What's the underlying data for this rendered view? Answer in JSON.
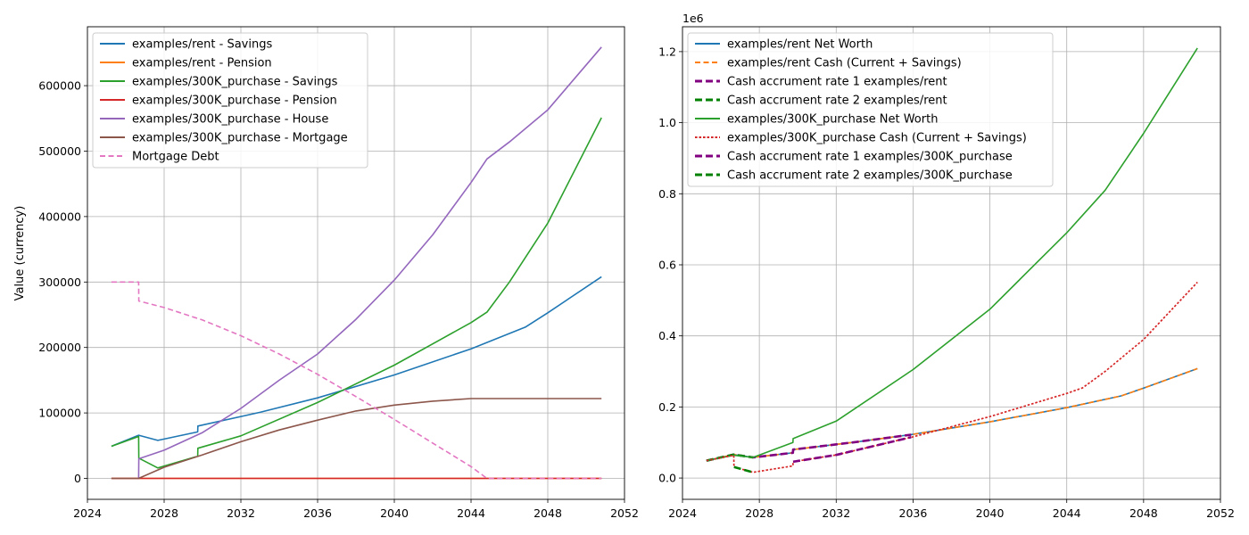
{
  "chart_data": [
    {
      "type": "line",
      "title": "",
      "xlabel": "",
      "ylabel": "Value (currency)",
      "xlim": [
        2024,
        2052
      ],
      "ylim": [
        -32000,
        690000
      ],
      "xticks": [
        2024,
        2028,
        2032,
        2036,
        2040,
        2044,
        2048,
        2052
      ],
      "yticks": [
        0,
        100000,
        200000,
        300000,
        400000,
        500000,
        600000
      ],
      "grid": true,
      "legend_position": "upper left",
      "series": [
        {
          "name": "examples/rent - Savings",
          "color": "#1f77b4",
          "style": "solid",
          "points": [
            [
              2025.25,
              49000
            ],
            [
              2026.67,
              66000
            ],
            [
              2027.67,
              58000
            ],
            [
              2029.75,
              71000
            ],
            [
              2029.76,
              80000
            ],
            [
              2033,
              101000
            ],
            [
              2036,
              123000
            ],
            [
              2040,
              158000
            ],
            [
              2044,
              198000
            ],
            [
              2046.83,
              231000
            ],
            [
              2048,
              253000
            ],
            [
              2050.8,
              308000
            ]
          ]
        },
        {
          "name": "examples/rent - Pension",
          "color": "#ff7f0e",
          "style": "solid",
          "points": [
            [
              2025.25,
              0
            ],
            [
              2050.8,
              0
            ]
          ]
        },
        {
          "name": "examples/300K_purchase - Savings",
          "color": "#2ca02c",
          "style": "solid",
          "points": [
            [
              2025.25,
              49000
            ],
            [
              2026.67,
              64000
            ],
            [
              2026.68,
              31000
            ],
            [
              2027.67,
              16000
            ],
            [
              2029.75,
              34000
            ],
            [
              2029.76,
              46000
            ],
            [
              2032,
              65000
            ],
            [
              2036,
              116000
            ],
            [
              2040,
              173000
            ],
            [
              2044,
              238000
            ],
            [
              2044.83,
              254000
            ],
            [
              2046,
              300000
            ],
            [
              2048,
              390000
            ],
            [
              2050.8,
              551000
            ]
          ]
        },
        {
          "name": "examples/300K_purchase - Pension",
          "color": "#d62728",
          "style": "solid",
          "points": [
            [
              2025.25,
              0
            ],
            [
              2050.8,
              0
            ]
          ]
        },
        {
          "name": "examples/300K_purchase - House",
          "color": "#9467bd",
          "style": "solid",
          "points": [
            [
              2026.67,
              0
            ],
            [
              2026.68,
              30000
            ],
            [
              2028,
              43000
            ],
            [
              2030,
              70000
            ],
            [
              2032,
              107000
            ],
            [
              2034,
              150000
            ],
            [
              2036,
              190000
            ],
            [
              2038,
              243000
            ],
            [
              2040,
              303000
            ],
            [
              2042,
              372000
            ],
            [
              2044,
              452000
            ],
            [
              2044.83,
              488000
            ],
            [
              2046,
              514000
            ],
            [
              2048,
              563000
            ],
            [
              2050.8,
              659000
            ]
          ]
        },
        {
          "name": "examples/300K_purchase - Mortgage",
          "color": "#8c564b",
          "style": "solid",
          "points": [
            [
              2025.25,
              0
            ],
            [
              2026.67,
              0
            ],
            [
              2028,
              17000
            ],
            [
              2030,
              36000
            ],
            [
              2032,
              56000
            ],
            [
              2034,
              74000
            ],
            [
              2036,
              89000
            ],
            [
              2038,
              103000
            ],
            [
              2040,
              112000
            ],
            [
              2042,
              118000
            ],
            [
              2044,
              122000
            ],
            [
              2044.83,
              122000
            ],
            [
              2050.8,
              122000
            ]
          ]
        },
        {
          "name": "Mortgage Debt",
          "color": "#e377c2",
          "style": "dashed",
          "points": [
            [
              2025.25,
              300000
            ],
            [
              2026.67,
              300000
            ],
            [
              2026.68,
              271000
            ],
            [
              2028,
              261000
            ],
            [
              2030,
              242000
            ],
            [
              2032,
              218000
            ],
            [
              2034,
              190000
            ],
            [
              2036,
              159000
            ],
            [
              2038,
              125000
            ],
            [
              2040,
              90000
            ],
            [
              2042,
              54000
            ],
            [
              2044,
              18000
            ],
            [
              2044.83,
              0
            ],
            [
              2050.8,
              0
            ]
          ]
        }
      ]
    },
    {
      "type": "line",
      "title": "",
      "xlabel": "",
      "ylabel": "",
      "scale_label": "1e6",
      "xlim": [
        2024,
        2052
      ],
      "ylim": [
        -0.06,
        1.27
      ],
      "xticks": [
        2024,
        2028,
        2032,
        2036,
        2040,
        2044,
        2048,
        2052
      ],
      "yticks": [
        0.0,
        0.2,
        0.4,
        0.6,
        0.8,
        1.0,
        1.2
      ],
      "ytick_labels": [
        "0.0",
        "0.2",
        "0.4",
        "0.6",
        "0.8",
        "1.0",
        "1.2"
      ],
      "grid": true,
      "legend_position": "upper left",
      "series": [
        {
          "name": "examples/rent Net Worth",
          "color": "#1f77b4",
          "style": "solid",
          "points": [
            [
              2025.25,
              0.049
            ],
            [
              2026.67,
              0.066
            ],
            [
              2027.67,
              0.058
            ],
            [
              2029.75,
              0.071
            ],
            [
              2029.76,
              0.08
            ],
            [
              2033,
              0.101
            ],
            [
              2036,
              0.123
            ],
            [
              2040,
              0.158
            ],
            [
              2044,
              0.198
            ],
            [
              2046.83,
              0.231
            ],
            [
              2048,
              0.253
            ],
            [
              2050.8,
              0.308
            ]
          ]
        },
        {
          "name": "examples/rent Cash (Current + Savings)",
          "color": "#ff7f0e",
          "style": "dashed",
          "points": [
            [
              2025.25,
              0.049
            ],
            [
              2026.67,
              0.066
            ],
            [
              2027.67,
              0.058
            ],
            [
              2029.75,
              0.071
            ],
            [
              2029.76,
              0.08
            ],
            [
              2033,
              0.101
            ],
            [
              2036,
              0.123
            ],
            [
              2040,
              0.158
            ],
            [
              2044,
              0.198
            ],
            [
              2046.83,
              0.231
            ],
            [
              2048,
              0.253
            ],
            [
              2050.8,
              0.308
            ]
          ]
        },
        {
          "name": "Cash accrument rate 1 examples/rent",
          "color": "#800080",
          "style": "dashed-thick",
          "points": [
            [
              2025.25,
              0.049
            ],
            [
              2026.67,
              0.066
            ],
            [
              2027.67,
              0.058
            ],
            [
              2029.75,
              0.071
            ],
            [
              2029.76,
              0.08
            ],
            [
              2033,
              0.101
            ],
            [
              2035.9,
              0.122
            ]
          ]
        },
        {
          "name": "Cash accrument rate 2 examples/rent",
          "color": "#008000",
          "style": "dashed-thick",
          "points": [
            [
              2025.25,
              0.049
            ],
            [
              2026.67,
              0.066
            ],
            [
              2027.67,
              0.058
            ]
          ]
        },
        {
          "name": "examples/300K_purchase Net Worth",
          "color": "#2ca02c",
          "style": "solid",
          "points": [
            [
              2025.25,
              0.049
            ],
            [
              2026.67,
              0.064
            ],
            [
              2027.67,
              0.058
            ],
            [
              2029.75,
              0.1
            ],
            [
              2029.76,
              0.111
            ],
            [
              2032,
              0.16
            ],
            [
              2036,
              0.305
            ],
            [
              2040,
              0.475
            ],
            [
              2044,
              0.69
            ],
            [
              2046,
              0.81
            ],
            [
              2048,
              0.97
            ],
            [
              2050.8,
              1.21
            ]
          ]
        },
        {
          "name": "examples/300K_purchase Cash (Current + Savings)",
          "color": "#d62728",
          "style": "dotted",
          "points": [
            [
              2025.25,
              0.049
            ],
            [
              2026.67,
              0.064
            ],
            [
              2026.68,
              0.031
            ],
            [
              2027.67,
              0.016
            ],
            [
              2029.75,
              0.034
            ],
            [
              2029.76,
              0.046
            ],
            [
              2032,
              0.065
            ],
            [
              2036,
              0.116
            ],
            [
              2040,
              0.173
            ],
            [
              2044,
              0.238
            ],
            [
              2044.83,
              0.254
            ],
            [
              2046,
              0.3
            ],
            [
              2048,
              0.39
            ],
            [
              2050.8,
              0.551
            ]
          ]
        },
        {
          "name": "Cash accrument rate 1 examples/300K_purchase",
          "color": "#800080",
          "style": "dashed-thick",
          "points": [
            [
              2029.76,
              0.046
            ],
            [
              2032,
              0.065
            ],
            [
              2035.9,
              0.115
            ]
          ]
        },
        {
          "name": "Cash accrument rate 2 examples/300K_purchase",
          "color": "#008000",
          "style": "dashed-thick",
          "points": [
            [
              2026.68,
              0.031
            ],
            [
              2027.67,
              0.016
            ]
          ]
        }
      ]
    }
  ]
}
